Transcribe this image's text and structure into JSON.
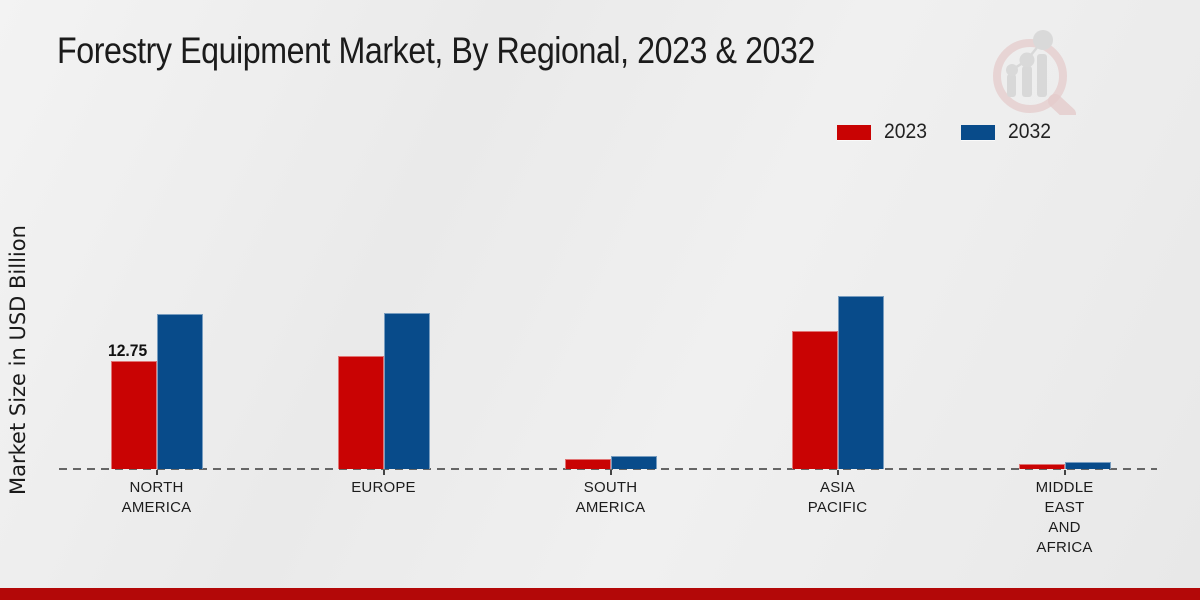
{
  "title": "Forestry Equipment Market, By Regional, 2023 & 2032",
  "ylabel": "Market Size in USD Billion",
  "annotation": {
    "text": "12.75"
  },
  "footer": {
    "bar_color": "#b30808"
  },
  "logo": {
    "name": "market-research-watermark-logo"
  },
  "chart_data": {
    "type": "bar",
    "title": "Forestry Equipment Market, By Regional, 2023 & 2032",
    "xlabel": "",
    "ylabel": "Market Size in USD Billion",
    "ylim": [
      0,
      22
    ],
    "grid": false,
    "legend_position": "top-right",
    "baseline_style": "dashed",
    "categories": [
      "NORTH AMERICA",
      "EUROPE",
      "SOUTH AMERICA",
      "ASIA PACIFIC",
      "MIDDLE EAST AND AFRICA"
    ],
    "category_lines": [
      [
        "NORTH",
        "AMERICA"
      ],
      [
        "EUROPE"
      ],
      [
        "SOUTH",
        "AMERICA"
      ],
      [
        "ASIA",
        "PACIFIC"
      ],
      [
        "MIDDLE",
        "EAST",
        "AND",
        "AFRICA"
      ]
    ],
    "series": [
      {
        "name": "2023",
        "color": "#c90303",
        "values": [
          12.75,
          13.3,
          1.2,
          16.3,
          0.6
        ]
      },
      {
        "name": "2032",
        "color": "#084b8a",
        "values": [
          18.3,
          18.4,
          1.5,
          20.4,
          0.8
        ]
      }
    ],
    "data_labels": [
      {
        "series": "2023",
        "category": "NORTH AMERICA",
        "value": "12.75"
      }
    ]
  }
}
